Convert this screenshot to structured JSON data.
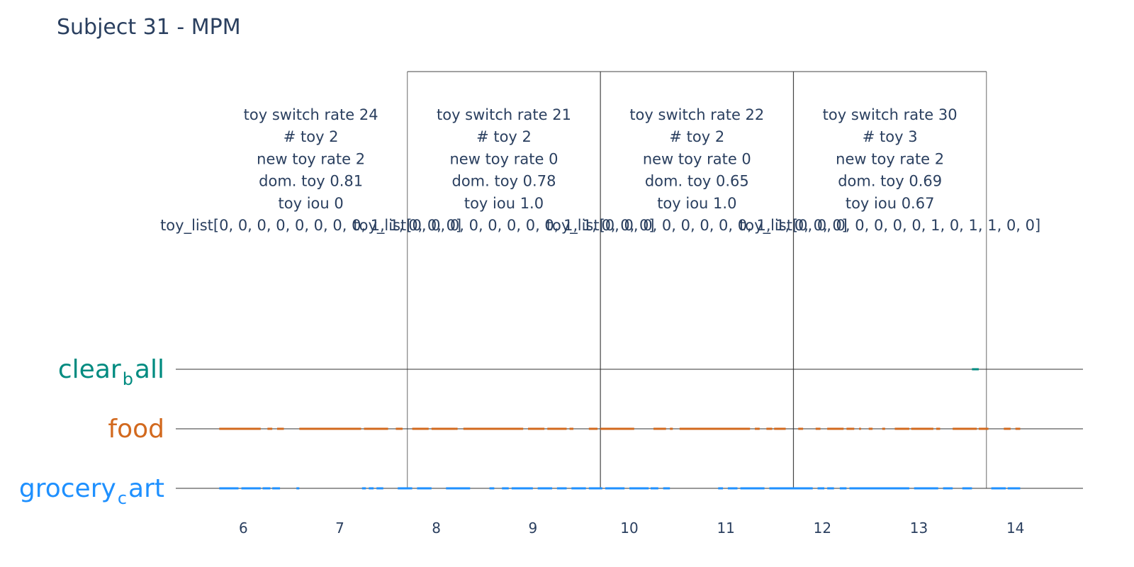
{
  "chart_data": {
    "type": "timeline",
    "title": "Subject 31 - MPM",
    "xlabel": "",
    "ylabel": "",
    "xlim": [
      5.3,
      14.7
    ],
    "x_ticks": [
      6,
      7,
      8,
      9,
      10,
      11,
      12,
      13,
      14
    ],
    "grid": false,
    "categories": [
      {
        "base": "grocery",
        "sub": "c",
        "rest": "art",
        "color": "#1e90ff"
      },
      {
        "base": "food",
        "sub": "",
        "rest": "",
        "color": "#d2691e"
      },
      {
        "base": "clear",
        "sub": "b",
        "rest": "all",
        "color": "#008b80"
      }
    ],
    "series": [
      {
        "category": "grocery_cart",
        "color": "#1e90ff",
        "intervals": [
          [
            5.75,
            5.95
          ],
          [
            5.98,
            6.18
          ],
          [
            6.2,
            6.28
          ],
          [
            6.3,
            6.38
          ],
          [
            6.55,
            6.58
          ],
          [
            7.23,
            7.27
          ],
          [
            7.3,
            7.35
          ],
          [
            7.38,
            7.45
          ],
          [
            7.6,
            7.75
          ],
          [
            7.8,
            7.95
          ],
          [
            8.1,
            8.35
          ],
          [
            8.55,
            8.6
          ],
          [
            8.68,
            8.75
          ],
          [
            8.78,
            9.0
          ],
          [
            9.05,
            9.2
          ],
          [
            9.25,
            9.35
          ],
          [
            9.4,
            9.55
          ],
          [
            9.58,
            9.72
          ],
          [
            9.75,
            9.95
          ],
          [
            10.0,
            10.2
          ],
          [
            10.22,
            10.3
          ],
          [
            10.35,
            10.42
          ],
          [
            10.92,
            10.97
          ],
          [
            11.02,
            11.12
          ],
          [
            11.15,
            11.4
          ],
          [
            11.45,
            11.9
          ],
          [
            11.95,
            12.02
          ],
          [
            12.05,
            12.12
          ],
          [
            12.18,
            12.25
          ],
          [
            12.28,
            12.9
          ],
          [
            12.95,
            13.2
          ],
          [
            13.25,
            13.35
          ],
          [
            13.45,
            13.55
          ],
          [
            13.75,
            13.9
          ],
          [
            13.92,
            14.05
          ]
        ]
      },
      {
        "category": "food",
        "color": "#d2691e",
        "intervals": [
          [
            5.75,
            6.18
          ],
          [
            6.25,
            6.3
          ],
          [
            6.35,
            6.42
          ],
          [
            6.58,
            7.22
          ],
          [
            7.25,
            7.5
          ],
          [
            7.58,
            7.65
          ],
          [
            7.75,
            7.92
          ],
          [
            7.95,
            8.2
          ],
          [
            8.2,
            8.22
          ],
          [
            8.28,
            8.9
          ],
          [
            8.95,
            9.12
          ],
          [
            9.15,
            9.35
          ],
          [
            9.38,
            9.42
          ],
          [
            9.58,
            9.67
          ],
          [
            9.7,
            10.05
          ],
          [
            10.25,
            10.38
          ],
          [
            10.42,
            10.45
          ],
          [
            10.52,
            11.25
          ],
          [
            11.3,
            11.35
          ],
          [
            11.42,
            11.48
          ],
          [
            11.5,
            11.62
          ],
          [
            11.75,
            11.8
          ],
          [
            11.93,
            11.98
          ],
          [
            12.05,
            12.22
          ],
          [
            12.25,
            12.33
          ],
          [
            12.38,
            12.4
          ],
          [
            12.48,
            12.52
          ],
          [
            12.62,
            12.65
          ],
          [
            12.75,
            12.9
          ],
          [
            12.92,
            13.15
          ],
          [
            13.18,
            13.22
          ],
          [
            13.35,
            13.6
          ],
          [
            13.62,
            13.72
          ],
          [
            13.88,
            13.95
          ],
          [
            14.0,
            14.05
          ]
        ]
      },
      {
        "category": "clear_ball",
        "color": "#008b80",
        "intervals": [
          [
            13.55,
            13.62
          ]
        ]
      }
    ],
    "segments": [
      {
        "x_start": 5.7,
        "x_end": 7.7,
        "lines": [
          "toy switch rate 24",
          "# toy 2",
          "new toy rate 2",
          "dom. toy 0.81",
          "toy iou 0",
          "toy_list[0, 0, 0, 0, 0, 0, 0, 0, 1, 1, 0, 0, 0]"
        ]
      },
      {
        "x_start": 7.7,
        "x_end": 9.7,
        "lines": [
          "toy switch rate 21",
          "# toy 2",
          "new toy rate 0",
          "dom. toy 0.78",
          "toy iou 1.0",
          "toy_list[0, 0, 0, 0, 0, 0, 0, 0, 1, 1, 0, 0, 0]"
        ]
      },
      {
        "x_start": 9.7,
        "x_end": 11.7,
        "lines": [
          "toy switch rate 22",
          "# toy 2",
          "new toy rate 0",
          "dom. toy 0.65",
          "toy iou 1.0",
          "toy_list[0, 0, 0, 0, 0, 0, 0, 0, 1, 1, 0, 0, 0]"
        ]
      },
      {
        "x_start": 11.7,
        "x_end": 13.7,
        "lines": [
          "toy switch rate 30",
          "# toy 3",
          "new toy rate 2",
          "dom. toy 0.69",
          "toy iou 0.67",
          "toy_list[0, 0, 0, 0, 0, 0, 0, 1, 0, 1, 1, 0, 0]"
        ]
      }
    ],
    "segment_boundaries": [
      7.7,
      9.7,
      11.7,
      13.7
    ]
  }
}
